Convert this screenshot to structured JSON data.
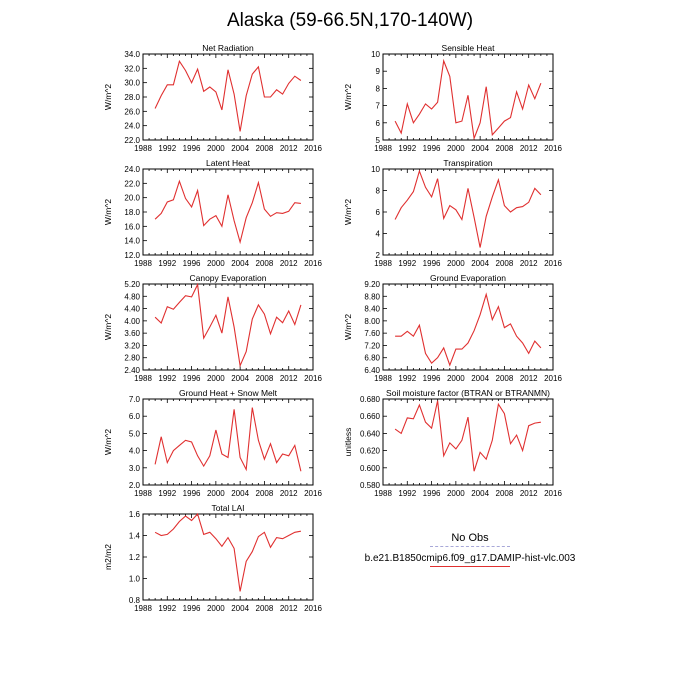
{
  "title": "Alaska (59-66.5N,170-140W)",
  "legend": {
    "entries": [
      {
        "label": "No Obs",
        "color": "#a8a8d8",
        "style": "dashed"
      },
      {
        "label": "b.e21.B1850cmip6.f09_g17.DAMIP-hist-vlc.003",
        "color": "#e03030",
        "style": "solid"
      }
    ]
  },
  "chart_data": [
    {
      "type": "line",
      "title": "Net Radiation",
      "ylabel": "W/m^2",
      "xlim": [
        1988,
        2016
      ],
      "xticks": [
        1988,
        1992,
        1996,
        2000,
        2004,
        2008,
        2012,
        2016
      ],
      "ylim": [
        22.0,
        34.0
      ],
      "yticks": [
        "22.0",
        "24.0",
        "26.0",
        "28.0",
        "30.0",
        "32.0",
        "34.0"
      ],
      "color": "#e03030",
      "x": [
        1990,
        1991,
        1992,
        1993,
        1994,
        1995,
        1996,
        1997,
        1998,
        1999,
        2000,
        2001,
        2002,
        2003,
        2004,
        2005,
        2006,
        2007,
        2008,
        2009,
        2010,
        2011,
        2012,
        2013,
        2014
      ],
      "y": [
        26.4,
        28.2,
        29.7,
        29.7,
        33.0,
        31.7,
        30.0,
        31.9,
        28.8,
        29.4,
        28.7,
        26.2,
        31.8,
        28.4,
        23.2,
        28.2,
        31.2,
        32.2,
        28.0,
        28.0,
        29.0,
        28.4,
        29.9,
        30.9,
        30.3
      ]
    },
    {
      "type": "line",
      "title": "Sensible Heat",
      "ylabel": "W/m^2",
      "xlim": [
        1988,
        2016
      ],
      "xticks": [
        1988,
        1992,
        1996,
        2000,
        2004,
        2008,
        2012,
        2016
      ],
      "ylim": [
        5,
        10
      ],
      "yticks": [
        "5",
        "6",
        "7",
        "8",
        "9",
        "10"
      ],
      "color": "#e03030",
      "x": [
        1990,
        1991,
        1992,
        1993,
        1994,
        1995,
        1996,
        1997,
        1998,
        1999,
        2000,
        2001,
        2002,
        2003,
        2004,
        2005,
        2006,
        2007,
        2008,
        2009,
        2010,
        2011,
        2012,
        2013,
        2014
      ],
      "y": [
        6.1,
        5.4,
        7.1,
        6.0,
        6.5,
        7.1,
        6.8,
        7.2,
        9.6,
        8.7,
        6.0,
        6.1,
        7.6,
        5.1,
        6.0,
        8.1,
        5.3,
        5.7,
        6.1,
        6.3,
        7.8,
        6.8,
        8.2,
        7.4,
        8.3
      ]
    },
    {
      "type": "line",
      "title": "Latent Heat",
      "ylabel": "W/m^2",
      "xlim": [
        1988,
        2016
      ],
      "xticks": [
        1988,
        1992,
        1996,
        2000,
        2004,
        2008,
        2012,
        2016
      ],
      "ylim": [
        12.0,
        24.0
      ],
      "yticks": [
        "12.0",
        "14.0",
        "16.0",
        "18.0",
        "20.0",
        "22.0",
        "24.0"
      ],
      "color": "#e03030",
      "x": [
        1990,
        1991,
        1992,
        1993,
        1994,
        1995,
        1996,
        1997,
        1998,
        1999,
        2000,
        2001,
        2002,
        2003,
        2004,
        2005,
        2006,
        2007,
        2008,
        2009,
        2010,
        2011,
        2012,
        2013,
        2014
      ],
      "y": [
        17.0,
        17.8,
        19.4,
        19.7,
        22.3,
        19.9,
        18.7,
        21.0,
        16.1,
        17.0,
        17.5,
        16.0,
        20.4,
        16.8,
        13.8,
        17.2,
        19.3,
        22.1,
        18.4,
        17.4,
        17.9,
        17.8,
        18.1,
        19.3,
        19.2
      ]
    },
    {
      "type": "line",
      "title": "Transpiration",
      "ylabel": "W/m^2",
      "xlim": [
        1988,
        2016
      ],
      "xticks": [
        1988,
        1992,
        1996,
        2000,
        2004,
        2008,
        2012,
        2016
      ],
      "ylim": [
        2,
        10
      ],
      "yticks": [
        "2",
        "4",
        "6",
        "8",
        "10"
      ],
      "color": "#e03030",
      "x": [
        1990,
        1991,
        1992,
        1993,
        1994,
        1995,
        1996,
        1997,
        1998,
        1999,
        2000,
        2001,
        2002,
        2003,
        2004,
        2005,
        2006,
        2007,
        2008,
        2009,
        2010,
        2011,
        2012,
        2013,
        2014
      ],
      "y": [
        5.3,
        6.4,
        7.1,
        7.9,
        9.8,
        8.3,
        7.4,
        9.1,
        5.4,
        6.6,
        6.2,
        5.3,
        8.2,
        5.5,
        2.7,
        5.6,
        7.4,
        9.0,
        6.6,
        6.0,
        6.4,
        6.5,
        6.9,
        8.2,
        7.6
      ]
    },
    {
      "type": "line",
      "title": "Canopy Evaporation",
      "ylabel": "W/m^2",
      "xlim": [
        1988,
        2016
      ],
      "xticks": [
        1988,
        1992,
        1996,
        2000,
        2004,
        2008,
        2012,
        2016
      ],
      "ylim": [
        2.4,
        5.2
      ],
      "yticks": [
        "2.40",
        "2.80",
        "3.20",
        "3.60",
        "4.00",
        "4.40",
        "4.80",
        "5.20"
      ],
      "color": "#e03030",
      "x": [
        1990,
        1991,
        1992,
        1993,
        1994,
        1995,
        1996,
        1997,
        1998,
        1999,
        2000,
        2001,
        2002,
        2003,
        2004,
        2005,
        2006,
        2007,
        2008,
        2009,
        2010,
        2011,
        2012,
        2013,
        2014
      ],
      "y": [
        4.12,
        3.93,
        4.46,
        4.38,
        4.6,
        4.82,
        4.78,
        5.18,
        3.44,
        3.8,
        4.18,
        3.6,
        4.78,
        3.8,
        2.54,
        3.0,
        4.06,
        4.52,
        4.22,
        3.58,
        4.12,
        3.94,
        4.32,
        3.88,
        4.52
      ]
    },
    {
      "type": "line",
      "title": "Ground Evaporation",
      "ylabel": "W/m^2",
      "xlim": [
        1988,
        2016
      ],
      "xticks": [
        1988,
        1992,
        1996,
        2000,
        2004,
        2008,
        2012,
        2016
      ],
      "ylim": [
        6.4,
        9.2
      ],
      "yticks": [
        "6.40",
        "6.80",
        "7.20",
        "7.60",
        "8.00",
        "8.40",
        "8.80",
        "9.20"
      ],
      "color": "#e03030",
      "x": [
        1990,
        1991,
        1992,
        1993,
        1994,
        1995,
        1996,
        1997,
        1998,
        1999,
        2000,
        2001,
        2002,
        2003,
        2004,
        2005,
        2006,
        2007,
        2008,
        2009,
        2010,
        2011,
        2012,
        2013,
        2014
      ],
      "y": [
        7.5,
        7.5,
        7.66,
        7.5,
        7.86,
        6.94,
        6.62,
        6.8,
        7.12,
        6.56,
        7.08,
        7.08,
        7.28,
        7.68,
        8.2,
        8.86,
        8.04,
        8.46,
        7.78,
        7.9,
        7.5,
        7.28,
        6.94,
        7.34,
        7.12
      ]
    },
    {
      "type": "line",
      "title": "Ground Heat + Snow Melt",
      "ylabel": "W/m^2",
      "xlim": [
        1988,
        2016
      ],
      "xticks": [
        1988,
        1992,
        1996,
        2000,
        2004,
        2008,
        2012,
        2016
      ],
      "ylim": [
        2.0,
        7.0
      ],
      "yticks": [
        "2.0",
        "3.0",
        "4.0",
        "5.0",
        "6.0",
        "7.0"
      ],
      "color": "#e03030",
      "x": [
        1990,
        1991,
        1992,
        1993,
        1994,
        1995,
        1996,
        1997,
        1998,
        1999,
        2000,
        2001,
        2002,
        2003,
        2004,
        2005,
        2006,
        2007,
        2008,
        2009,
        2010,
        2011,
        2012,
        2013,
        2014
      ],
      "y": [
        3.2,
        4.8,
        3.3,
        4.0,
        4.3,
        4.6,
        4.5,
        3.7,
        3.1,
        3.7,
        5.2,
        3.8,
        3.6,
        6.4,
        3.6,
        2.9,
        6.5,
        4.6,
        3.5,
        4.4,
        3.3,
        3.8,
        3.7,
        4.3,
        2.8
      ]
    },
    {
      "type": "line",
      "title": "Soil moisture factor (BTRAN or BTRANMN)",
      "ylabel": "unitless",
      "xlim": [
        1988,
        2016
      ],
      "xticks": [
        1988,
        1992,
        1996,
        2000,
        2004,
        2008,
        2012,
        2016
      ],
      "ylim": [
        0.58,
        0.68
      ],
      "yticks": [
        "0.580",
        "0.600",
        "0.620",
        "0.640",
        "0.660",
        "0.680"
      ],
      "color": "#e03030",
      "x": [
        1990,
        1991,
        1992,
        1993,
        1994,
        1995,
        1996,
        1997,
        1998,
        1999,
        2000,
        2001,
        2002,
        2003,
        2004,
        2005,
        2006,
        2007,
        2008,
        2009,
        2010,
        2011,
        2012,
        2013,
        2014
      ],
      "y": [
        0.645,
        0.64,
        0.658,
        0.657,
        0.673,
        0.653,
        0.646,
        0.678,
        0.614,
        0.629,
        0.622,
        0.632,
        0.659,
        0.596,
        0.618,
        0.61,
        0.632,
        0.674,
        0.663,
        0.628,
        0.638,
        0.62,
        0.649,
        0.652,
        0.653
      ]
    },
    {
      "type": "line",
      "title": "Total LAI",
      "ylabel": "m2/m2",
      "xlim": [
        1988,
        2016
      ],
      "xticks": [
        1988,
        1992,
        1996,
        2000,
        2004,
        2008,
        2012,
        2016
      ],
      "ylim": [
        0.8,
        1.6
      ],
      "yticks": [
        "0.8",
        "1.0",
        "1.2",
        "1.4",
        "1.6"
      ],
      "color": "#e03030",
      "x": [
        1990,
        1991,
        1992,
        1993,
        1994,
        1995,
        1996,
        1997,
        1998,
        1999,
        2000,
        2001,
        2002,
        2003,
        2004,
        2005,
        2006,
        2007,
        2008,
        2009,
        2010,
        2011,
        2012,
        2013,
        2014
      ],
      "y": [
        1.43,
        1.4,
        1.41,
        1.46,
        1.53,
        1.58,
        1.54,
        1.6,
        1.41,
        1.43,
        1.37,
        1.3,
        1.38,
        1.28,
        0.88,
        1.16,
        1.25,
        1.39,
        1.43,
        1.29,
        1.38,
        1.37,
        1.4,
        1.43,
        1.44
      ]
    }
  ]
}
